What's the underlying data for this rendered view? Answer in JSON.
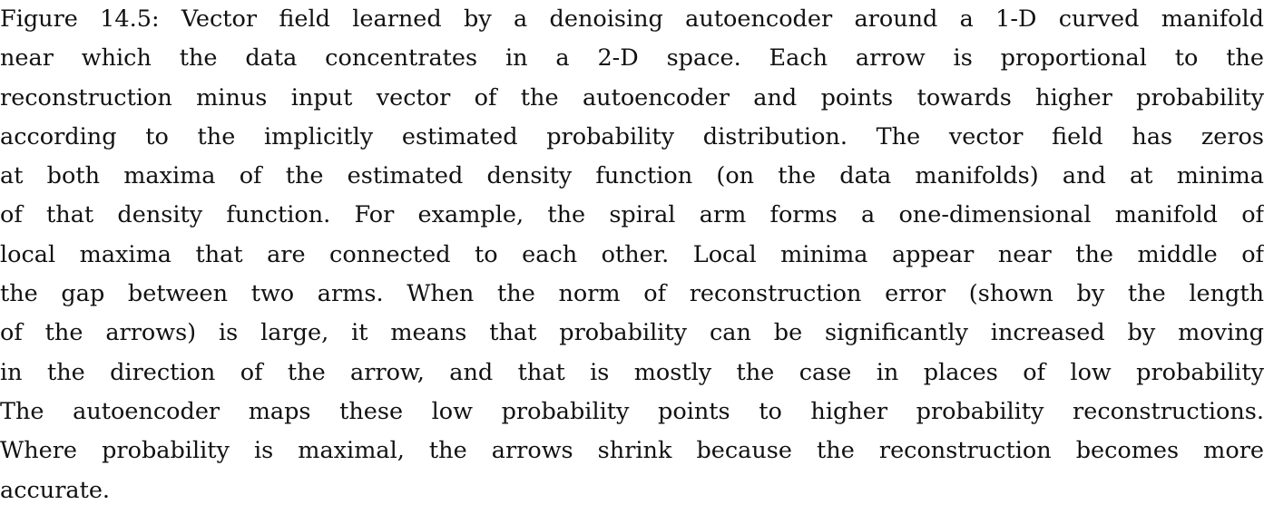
{
  "figure_caption": {
    "lines": [
      "Figure 14.5: Vector field learned by a denoising autoencoder around a 1-D curved manifold",
      "near which the data concentrates in a 2-D space.  Each arrow is proportional to the",
      "reconstruction minus input vector of the autoencoder and points towards higher probability",
      "according to the implicitly estimated probability distribution. The vector field has zeros",
      "at both maxima of the estimated density function (on the data manifolds) and at minima",
      "of that density function. For example, the spiral arm forms a one-dimensional manifold of",
      "local maxima that are connected to each other. Local minima appear near the middle of",
      "the gap between two arms. When the norm of reconstruction error (shown by the length",
      "of the arrows) is large, it means that probability can be significantly increased by moving",
      "in the direction of the arrow, and that is mostly the case in places of low probability",
      "The autoencoder maps these low probability points to higher probability reconstructions.",
      "Where probability is maximal, the arrows shrink because the reconstruction becomes more",
      "accurate."
    ]
  }
}
